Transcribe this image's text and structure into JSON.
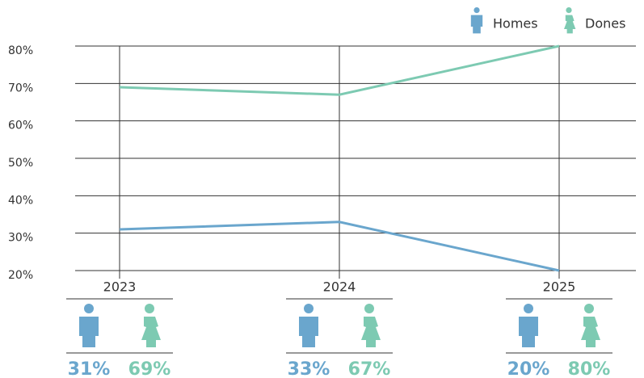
{
  "chart_data": {
    "type": "line",
    "categories": [
      "2023",
      "2024",
      "2025"
    ],
    "series": [
      {
        "name": "Homes",
        "color": "#6aa6cd",
        "values": [
          31,
          33,
          20
        ],
        "value_labels": [
          "31%",
          "33%",
          "20%"
        ]
      },
      {
        "name": "Dones",
        "color": "#7dcab2",
        "values": [
          69,
          67,
          80
        ],
        "value_labels": [
          "69%",
          "67%",
          "80%"
        ]
      }
    ],
    "ylim": [
      20,
      80
    ],
    "yticks": [
      {
        "value": 20,
        "label": "20%"
      },
      {
        "value": 30,
        "label": "30%"
      },
      {
        "value": 40,
        "label": "40%"
      },
      {
        "value": 50,
        "label": "50%"
      },
      {
        "value": 60,
        "label": "60%"
      },
      {
        "value": 70,
        "label": "70%"
      },
      {
        "value": 80,
        "label": "80%"
      }
    ],
    "grid": true,
    "legend": "top-right"
  }
}
